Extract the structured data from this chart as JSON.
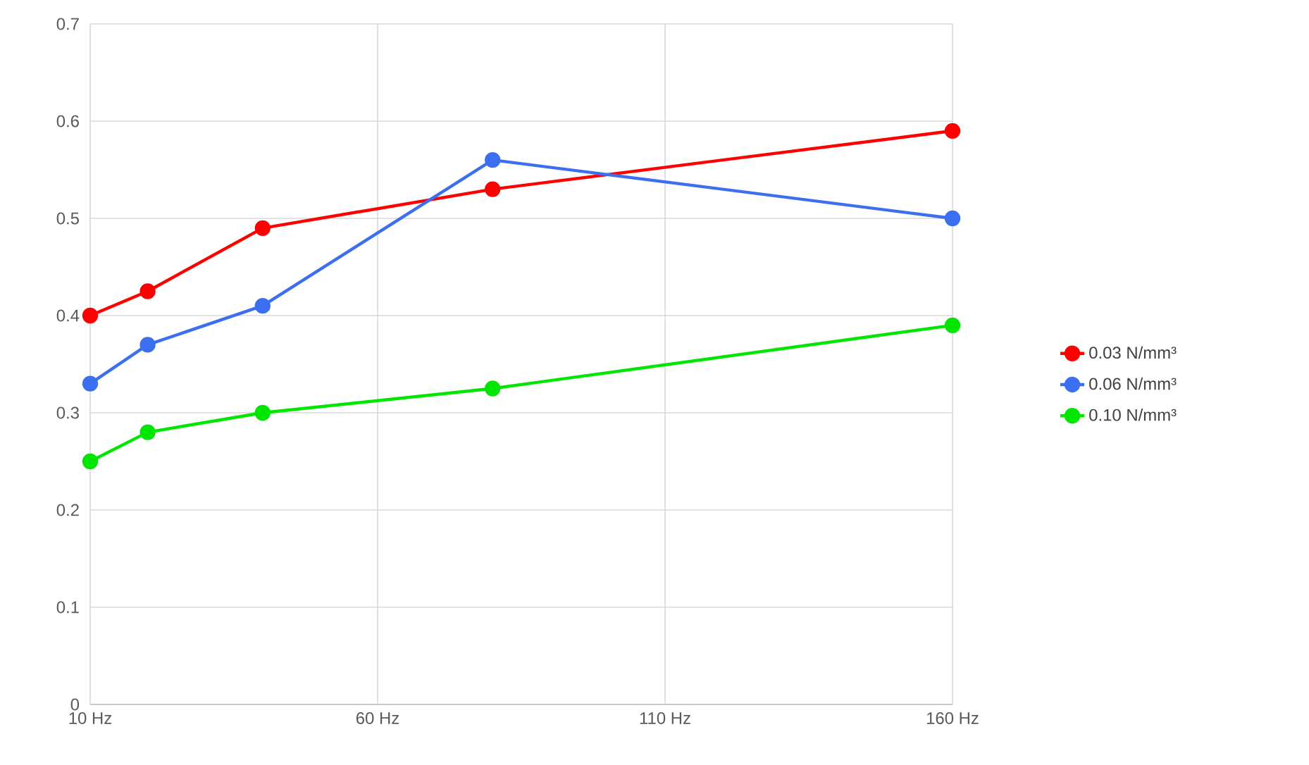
{
  "chart_data": {
    "type": "line",
    "x": [
      10,
      20,
      40,
      80,
      160
    ],
    "series": [
      {
        "name": "0.03 N/mm³",
        "color": "#ff0000",
        "values": [
          0.4,
          0.425,
          0.49,
          0.53,
          0.59
        ]
      },
      {
        "name": "0.06 N/mm³",
        "color": "#3b6ff0",
        "values": [
          0.33,
          0.37,
          0.41,
          0.56,
          0.5
        ]
      },
      {
        "name": "0.10 N/mm³",
        "color": "#00e600",
        "values": [
          0.25,
          0.28,
          0.3,
          0.325,
          0.39
        ]
      }
    ],
    "xlim": [
      10,
      160
    ],
    "xticks": [
      {
        "value": 10,
        "label": "10 Hz"
      },
      {
        "value": 60,
        "label": "60 Hz"
      },
      {
        "value": 110,
        "label": "110 Hz"
      },
      {
        "value": 160,
        "label": "160 Hz"
      }
    ],
    "ylim": [
      0,
      0.7
    ],
    "yticks": [
      0,
      0.1,
      0.2,
      0.3,
      0.4,
      0.5,
      0.6,
      0.7
    ],
    "grid": true,
    "legend": "right",
    "marker": "circle",
    "line_style": "solid"
  }
}
